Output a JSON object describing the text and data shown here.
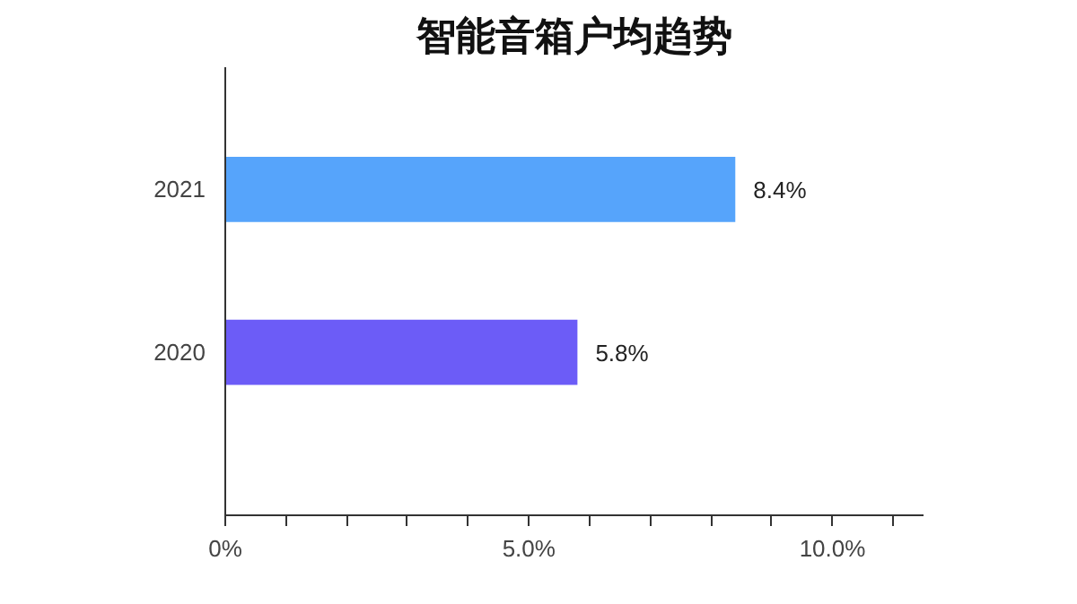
{
  "chart_data": {
    "type": "bar",
    "orientation": "horizontal",
    "title": "智能音箱户均趋势",
    "categories": [
      "2021",
      "2020"
    ],
    "values": [
      8.4,
      5.8
    ],
    "colors": [
      "#56a4fb",
      "#6c5cf7"
    ],
    "value_labels": [
      "8.4%",
      "5.8%"
    ],
    "xlim": [
      0,
      11.5
    ],
    "xticks": [
      {
        "value": 0,
        "label": "0%"
      },
      {
        "value": 1,
        "label": null
      },
      {
        "value": 2,
        "label": null
      },
      {
        "value": 3,
        "label": null
      },
      {
        "value": 4,
        "label": null
      },
      {
        "value": 5,
        "label": "5.0%"
      },
      {
        "value": 6,
        "label": null
      },
      {
        "value": 7,
        "label": null
      },
      {
        "value": 8,
        "label": null
      },
      {
        "value": 9,
        "label": null
      },
      {
        "value": 10,
        "label": "10.0%"
      },
      {
        "value": 11,
        "label": null
      }
    ],
    "grid": false
  }
}
